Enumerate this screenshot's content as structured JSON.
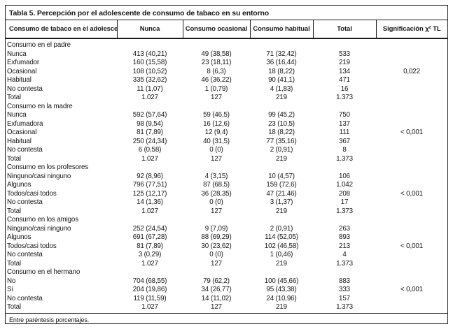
{
  "title": "Tabla 5. Percepción por el adolescente de consumo de tabaco en su entorno",
  "columns": [
    "Consumo de tabaco en el adolescente",
    "Nunca",
    "Consumo ocasional",
    "Consumo habitual",
    "Total",
    "Significación χ² TL"
  ],
  "footnote": "Entre paréntesis porcentajes.",
  "sections": [
    {
      "label": "Consumo en el padre",
      "rows": [
        {
          "label": "Nunca",
          "cells": [
            "413 (40,21)",
            "49 (38,58)",
            "71 (32,42)",
            "533",
            ""
          ]
        },
        {
          "label": "Exfumador",
          "cells": [
            "160 (15,58)",
            "23 (18,11)",
            "36 (16,44)",
            "219",
            ""
          ]
        },
        {
          "label": "Ocasional",
          "cells": [
            "108 (10,52)",
            "8 (6,3)",
            "18 (8,22)",
            "134",
            "0,022"
          ]
        },
        {
          "label": "Habitual",
          "cells": [
            "335 (32,62)",
            "46 (36,22)",
            "90 (41,1)",
            "471",
            ""
          ]
        },
        {
          "label": "No contesta",
          "cells": [
            "11 (1,07)",
            "1 (0,79)",
            "4 (1,83)",
            "16",
            ""
          ]
        },
        {
          "label": "Total",
          "cells": [
            "1.027",
            "127",
            "219",
            "1.373",
            ""
          ]
        }
      ]
    },
    {
      "label": "Consumo en la madre",
      "rows": [
        {
          "label": "Nunca",
          "cells": [
            "592 (57,64)",
            "59 (46,5)",
            "99 (45,2)",
            "750",
            ""
          ]
        },
        {
          "label": "Exfumadora",
          "cells": [
            "98 (9,54)",
            "16 (12,6)",
            "23 (10,5)",
            "137",
            ""
          ]
        },
        {
          "label": "Ocasional",
          "cells": [
            "81 (7,89)",
            "12 (9,4)",
            "18 (8,22)",
            "111",
            "< 0,001"
          ]
        },
        {
          "label": "Habitual",
          "cells": [
            "250 (24,34)",
            "40 (31,5)",
            "77 (35,16)",
            "367",
            ""
          ]
        },
        {
          "label": "No contesta",
          "cells": [
            "6 (0,58)",
            "0 (0)",
            "2 (0,91)",
            "8",
            ""
          ]
        },
        {
          "label": "Total",
          "cells": [
            "1.027",
            "127",
            "219",
            "1.373",
            ""
          ]
        }
      ]
    },
    {
      "label": "Consumo en los profesores",
      "rows": [
        {
          "label": "Ninguno/casi ninguno",
          "cells": [
            "92 (8,96)",
            "4 (3,15)",
            "10 (4,57)",
            "106",
            ""
          ]
        },
        {
          "label": "Algunos",
          "cells": [
            "796 (77,51)",
            "87 (68,5)",
            "159 (72,6)",
            "1.042",
            ""
          ]
        },
        {
          "label": "Todos/casi todos",
          "cells": [
            "125 (12,17)",
            "36 (28,35)",
            "47 (21,46)",
            "208",
            "< 0,001"
          ]
        },
        {
          "label": "No contesta",
          "cells": [
            "14 (1,36)",
            "0 (0)",
            "3 (1,37)",
            "17",
            ""
          ]
        },
        {
          "label": "Total",
          "cells": [
            "1.027",
            "127",
            "219",
            "1.373",
            ""
          ]
        }
      ]
    },
    {
      "label": "Consumo en los amigos",
      "rows": [
        {
          "label": "Ninguno/casi ninguno",
          "cells": [
            "252 (24,54)",
            "9 (7,09)",
            "2 (0,91)",
            "263",
            ""
          ]
        },
        {
          "label": "Algunos",
          "cells": [
            "691 (67,28)",
            "88 (69,29)",
            "114 (52,05)",
            "893",
            ""
          ]
        },
        {
          "label": "Todos/casi todos",
          "cells": [
            "81 (7,89)",
            "30 (23,62)",
            "102 (46,58)",
            "213",
            "< 0,001"
          ]
        },
        {
          "label": "No contesta",
          "cells": [
            "3 (0,29)",
            "0 (0)",
            "1 (0,46)",
            "4",
            ""
          ]
        },
        {
          "label": "Total",
          "cells": [
            "1.027",
            "127",
            "219",
            "1.373",
            ""
          ]
        }
      ]
    },
    {
      "label": "Consumo en el hermano",
      "rows": [
        {
          "label": "No",
          "cells": [
            "704 (68,55)",
            "79 (62,2)",
            "100 (45,66)",
            "883",
            ""
          ]
        },
        {
          "label": "Sí",
          "cells": [
            "204 (19,86)",
            "34 (26,77)",
            "95 (43,38)",
            "333",
            "< 0,001"
          ]
        },
        {
          "label": "No contesta",
          "cells": [
            "119 (11,59)",
            "14 (11,02)",
            "24 (10,96)",
            "157",
            ""
          ]
        },
        {
          "label": "Total",
          "cells": [
            "1.027",
            "127",
            "219",
            "1.373",
            ""
          ]
        }
      ]
    }
  ]
}
